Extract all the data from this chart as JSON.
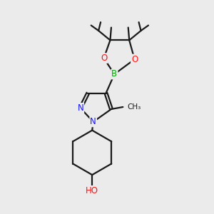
{
  "background_color": "#ebebeb",
  "bond_color": "#1a1a1a",
  "atom_colors": {
    "N": "#1414ff",
    "O": "#ff1414",
    "B": "#00aa00",
    "C": "#1a1a1a",
    "H": "#555555"
  },
  "figsize": [
    3.0,
    3.0
  ],
  "dpi": 100
}
